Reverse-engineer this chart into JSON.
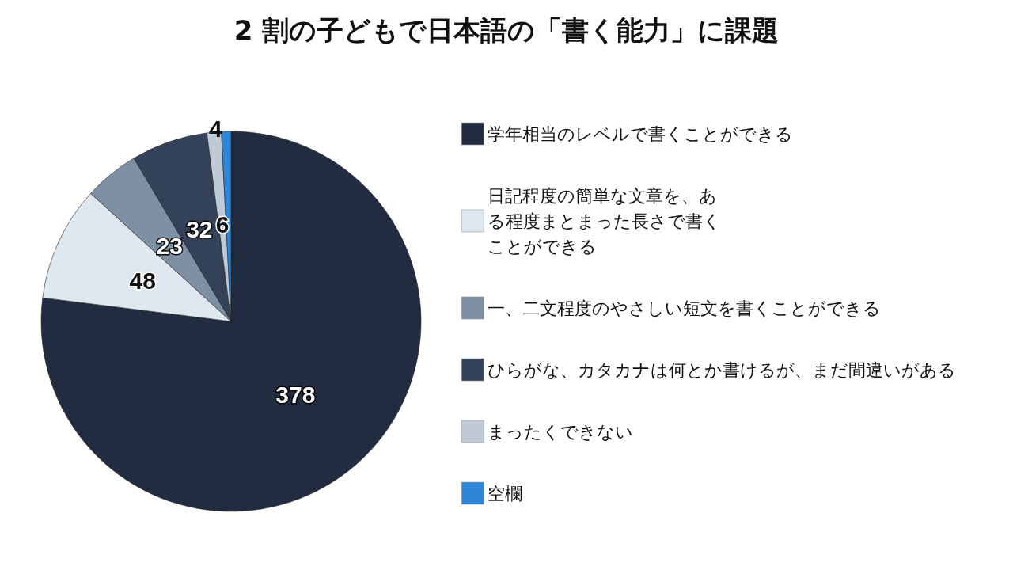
{
  "chart_data": {
    "type": "pie",
    "title": "2 割の子どもで日本語の「書く能力」に課題",
    "categories": [
      "学年相当のレベルで書くことができる",
      "日記程度の簡単な文章を、ある程度まとまった長さで書くことができる",
      "一、二文程度のやさしい短文を書くことができる",
      "ひらがな、カタカナは何とか書けるが、まだ間違いがある",
      "まったくできない",
      "空欄"
    ],
    "values": [
      378,
      48,
      23,
      32,
      6,
      4
    ],
    "colors": [
      "#212c40",
      "#dfe8f0",
      "#7e90a4",
      "#334259",
      "#bfcad6",
      "#2e86d9"
    ],
    "data_labels": true,
    "legend": "right"
  }
}
